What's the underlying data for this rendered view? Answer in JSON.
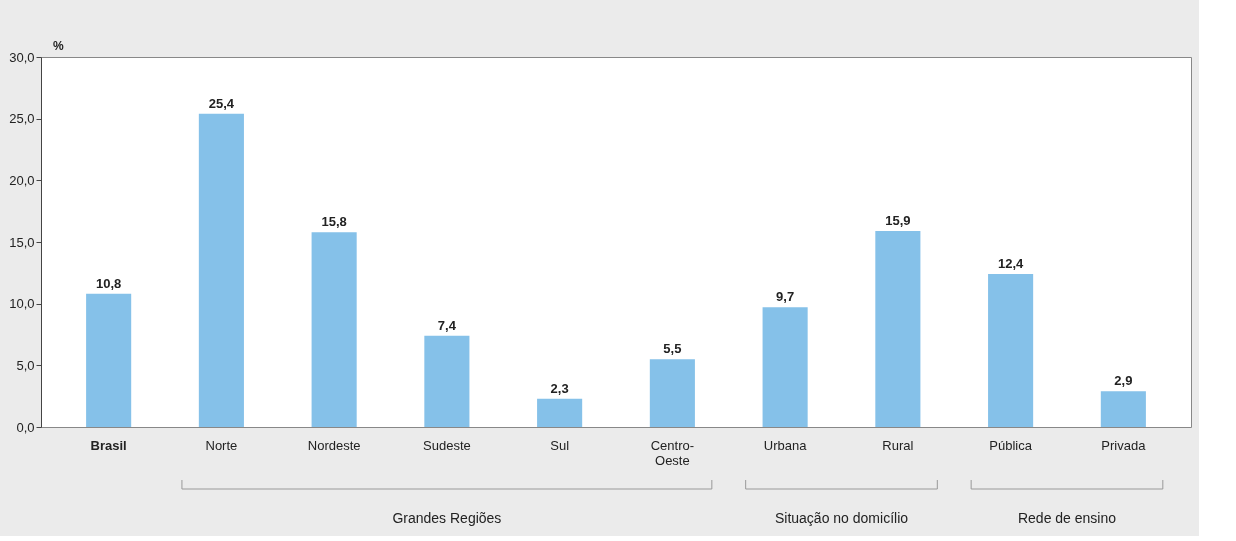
{
  "chart_data": {
    "type": "bar",
    "ylabel": "%",
    "categories": [
      "Brasil",
      "Norte",
      "Nordeste",
      "Sudeste",
      "Sul",
      "Centro-Oeste",
      "Urbana",
      "Rural",
      "Pública",
      "Privada"
    ],
    "values": [
      10.8,
      25.4,
      15.8,
      7.4,
      2.3,
      5.5,
      9.7,
      15.9,
      12.4,
      2.9
    ],
    "value_labels": [
      "10,8",
      "25,4",
      "15,8",
      "7,4",
      "2,3",
      "5,5",
      "9,7",
      "15,9",
      "12,4",
      "2,9"
    ],
    "color": "#85c1e9",
    "ylim": [
      0,
      30
    ],
    "yticks": [
      {
        "value": 0,
        "label": "0,0"
      },
      {
        "value": 5,
        "label": "5,0"
      },
      {
        "value": 10,
        "label": "10,0"
      },
      {
        "value": 15,
        "label": "15,0"
      },
      {
        "value": 20,
        "label": "20,0"
      },
      {
        "value": 25,
        "label": "25,0"
      },
      {
        "value": 30,
        "label": "30,0"
      }
    ],
    "grid": false,
    "annotations": [
      "Grandes Regiões",
      "Situação no domicílio",
      "Rede de ensino"
    ]
  }
}
